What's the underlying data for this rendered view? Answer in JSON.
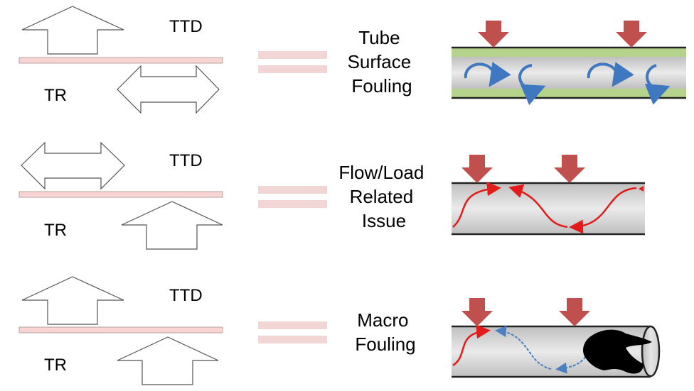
{
  "rows": [
    {
      "ttd_label": "TTD",
      "tr_label": "TR",
      "ttd_arrow": "up-arrow-icon",
      "tr_arrow": "double-headed-arrow-icon",
      "caption_lines": [
        "Tube",
        "Surface",
        "Fouling"
      ],
      "tube_style": "surface-fouling-eddies"
    },
    {
      "ttd_label": "TTD",
      "tr_label": "TR",
      "ttd_arrow": "double-headed-arrow-icon",
      "tr_arrow": "up-arrow-icon",
      "caption_lines": [
        "Flow/Load",
        "Related",
        "Issue"
      ],
      "tube_style": "red-serpentine-flow"
    },
    {
      "ttd_label": "TTD",
      "tr_label": "TR",
      "ttd_arrow": "up-arrow-icon",
      "tr_arrow": "up-arrow-icon",
      "caption_lines": [
        "Macro",
        "Fouling"
      ],
      "tube_style": "macro-fouling-blockage"
    }
  ],
  "colors": {
    "heat_arrow": "#c0504d",
    "fouling_layer": "#b5d38a",
    "eddy": "#3f78c0",
    "flow_red": "#e21b1b",
    "flow_blue": "#4a7fc0",
    "separator_bar": "#f8d4d2",
    "equals_sign": "#f2d6d6"
  }
}
